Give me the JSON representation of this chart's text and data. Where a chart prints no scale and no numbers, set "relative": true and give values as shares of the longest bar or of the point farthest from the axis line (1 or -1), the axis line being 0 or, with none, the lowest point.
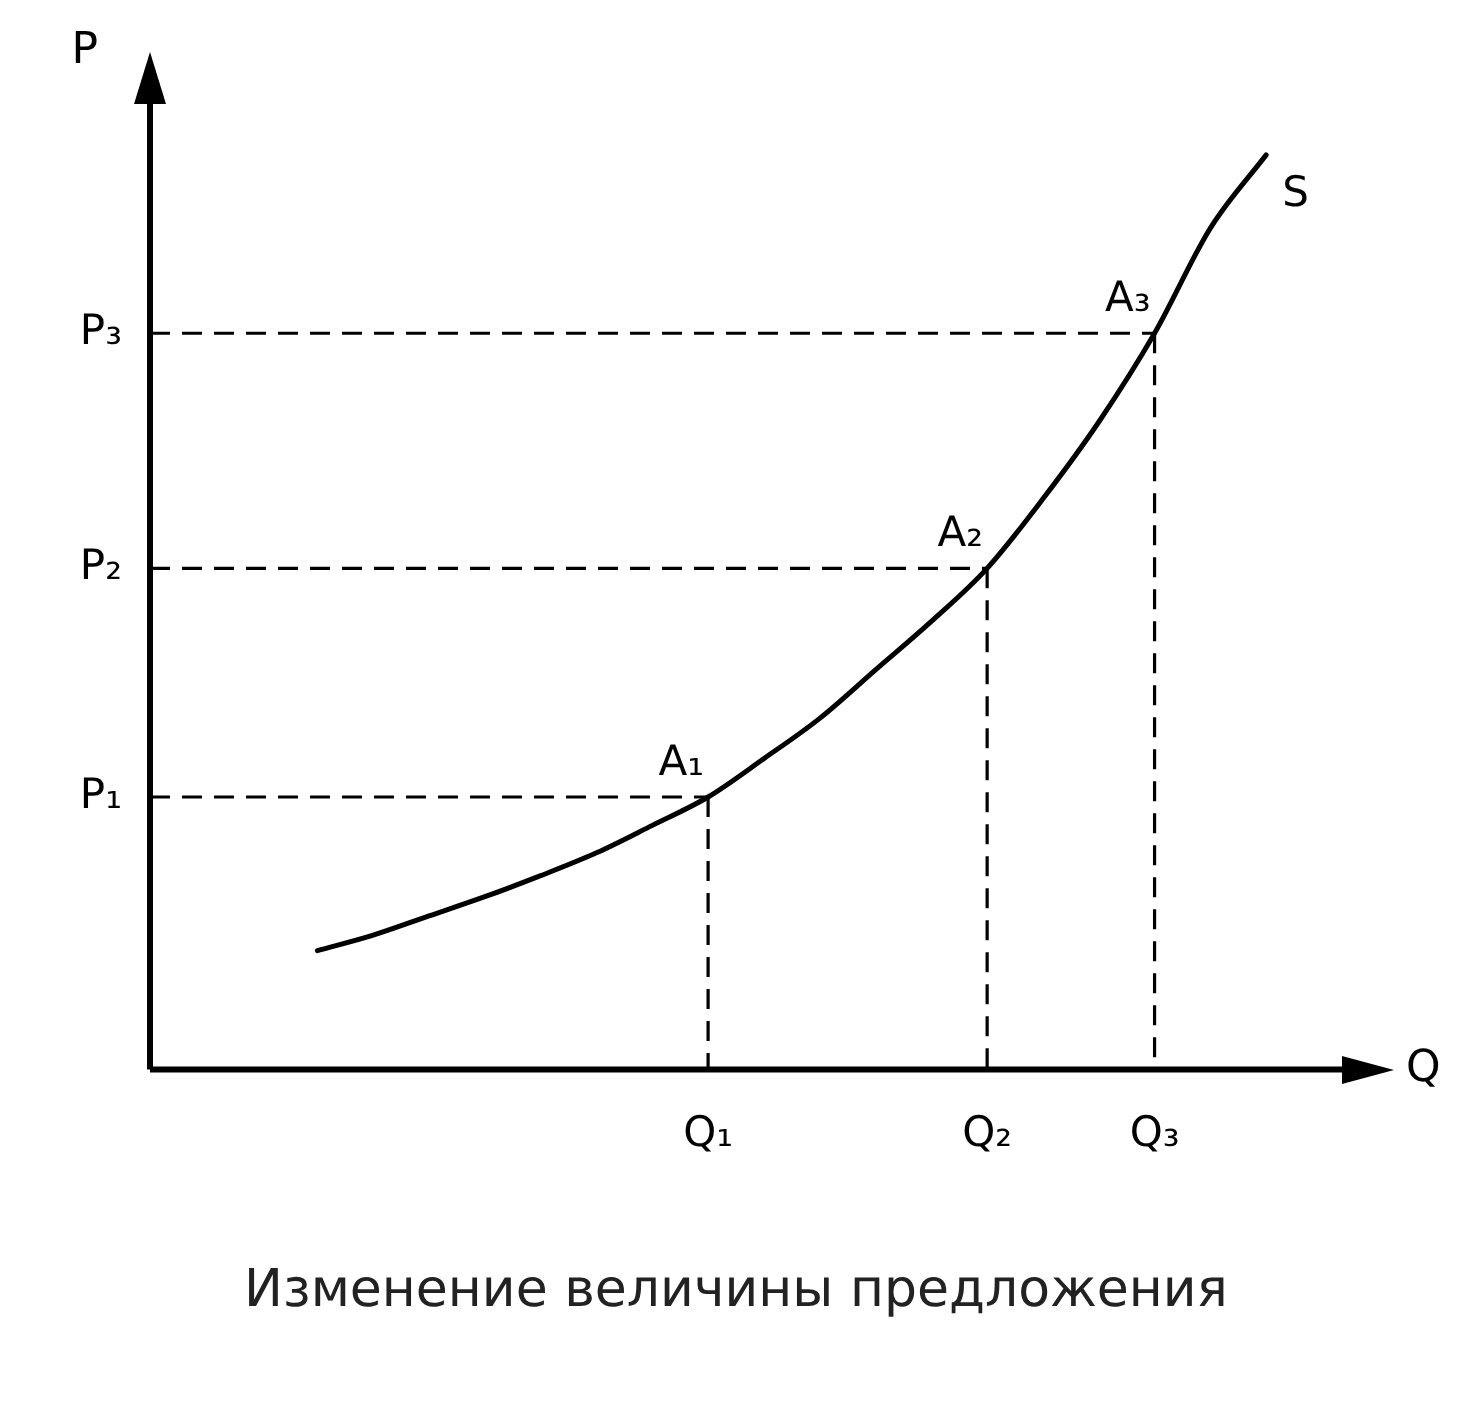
{
  "chart_data": {
    "type": "line",
    "title": "Изменение величины предложения",
    "xlabel": "Q",
    "ylabel": "P",
    "relative": true,
    "marker": "none",
    "line_style": "solid",
    "grid": false,
    "legend": false,
    "categories": [
      null,
      null,
      null,
      null,
      null,
      null,
      null,
      null,
      null,
      null,
      "Q₁",
      null,
      null,
      null,
      null,
      "Q₂",
      null,
      null,
      "Q₃",
      null,
      null,
      null
    ],
    "series": [
      {
        "name": "S",
        "color": "#000000",
        "values": [
          null,
          null,
          null,
          0.13,
          0.147,
          0.168,
          0.189,
          0.212,
          0.237,
          0.267,
          0.298,
          0.34,
          0.384,
          0.437,
          0.49,
          0.548,
          0.624,
          0.708,
          0.805,
          0.92,
          1,
          null
        ]
      }
    ],
    "ref_lines": [
      {
        "axis": "y",
        "value": 0.298,
        "label": "P₁",
        "line_style": "dashed",
        "color": "#000000"
      },
      {
        "axis": "y",
        "value": 0.548,
        "label": "P₂",
        "line_style": "dashed",
        "color": "#000000"
      },
      {
        "axis": "y",
        "value": 0.805,
        "label": "P₃",
        "line_style": "dashed",
        "color": "#000000"
      },
      {
        "axis": "x",
        "value": "Q₁",
        "line_style": "dashed",
        "color": "#000000"
      },
      {
        "axis": "x",
        "value": "Q₂",
        "line_style": "dashed",
        "color": "#000000"
      },
      {
        "axis": "x",
        "value": "Q₃",
        "line_style": "dashed",
        "color": "#000000"
      }
    ],
    "annotations": [
      {
        "text": "A₁",
        "x": "Q₁",
        "y": 0.298
      },
      {
        "text": "A₂",
        "x": "Q₂",
        "y": 0.548
      },
      {
        "text": "A₃",
        "x": "Q₃",
        "y": 0.805
      }
    ]
  }
}
